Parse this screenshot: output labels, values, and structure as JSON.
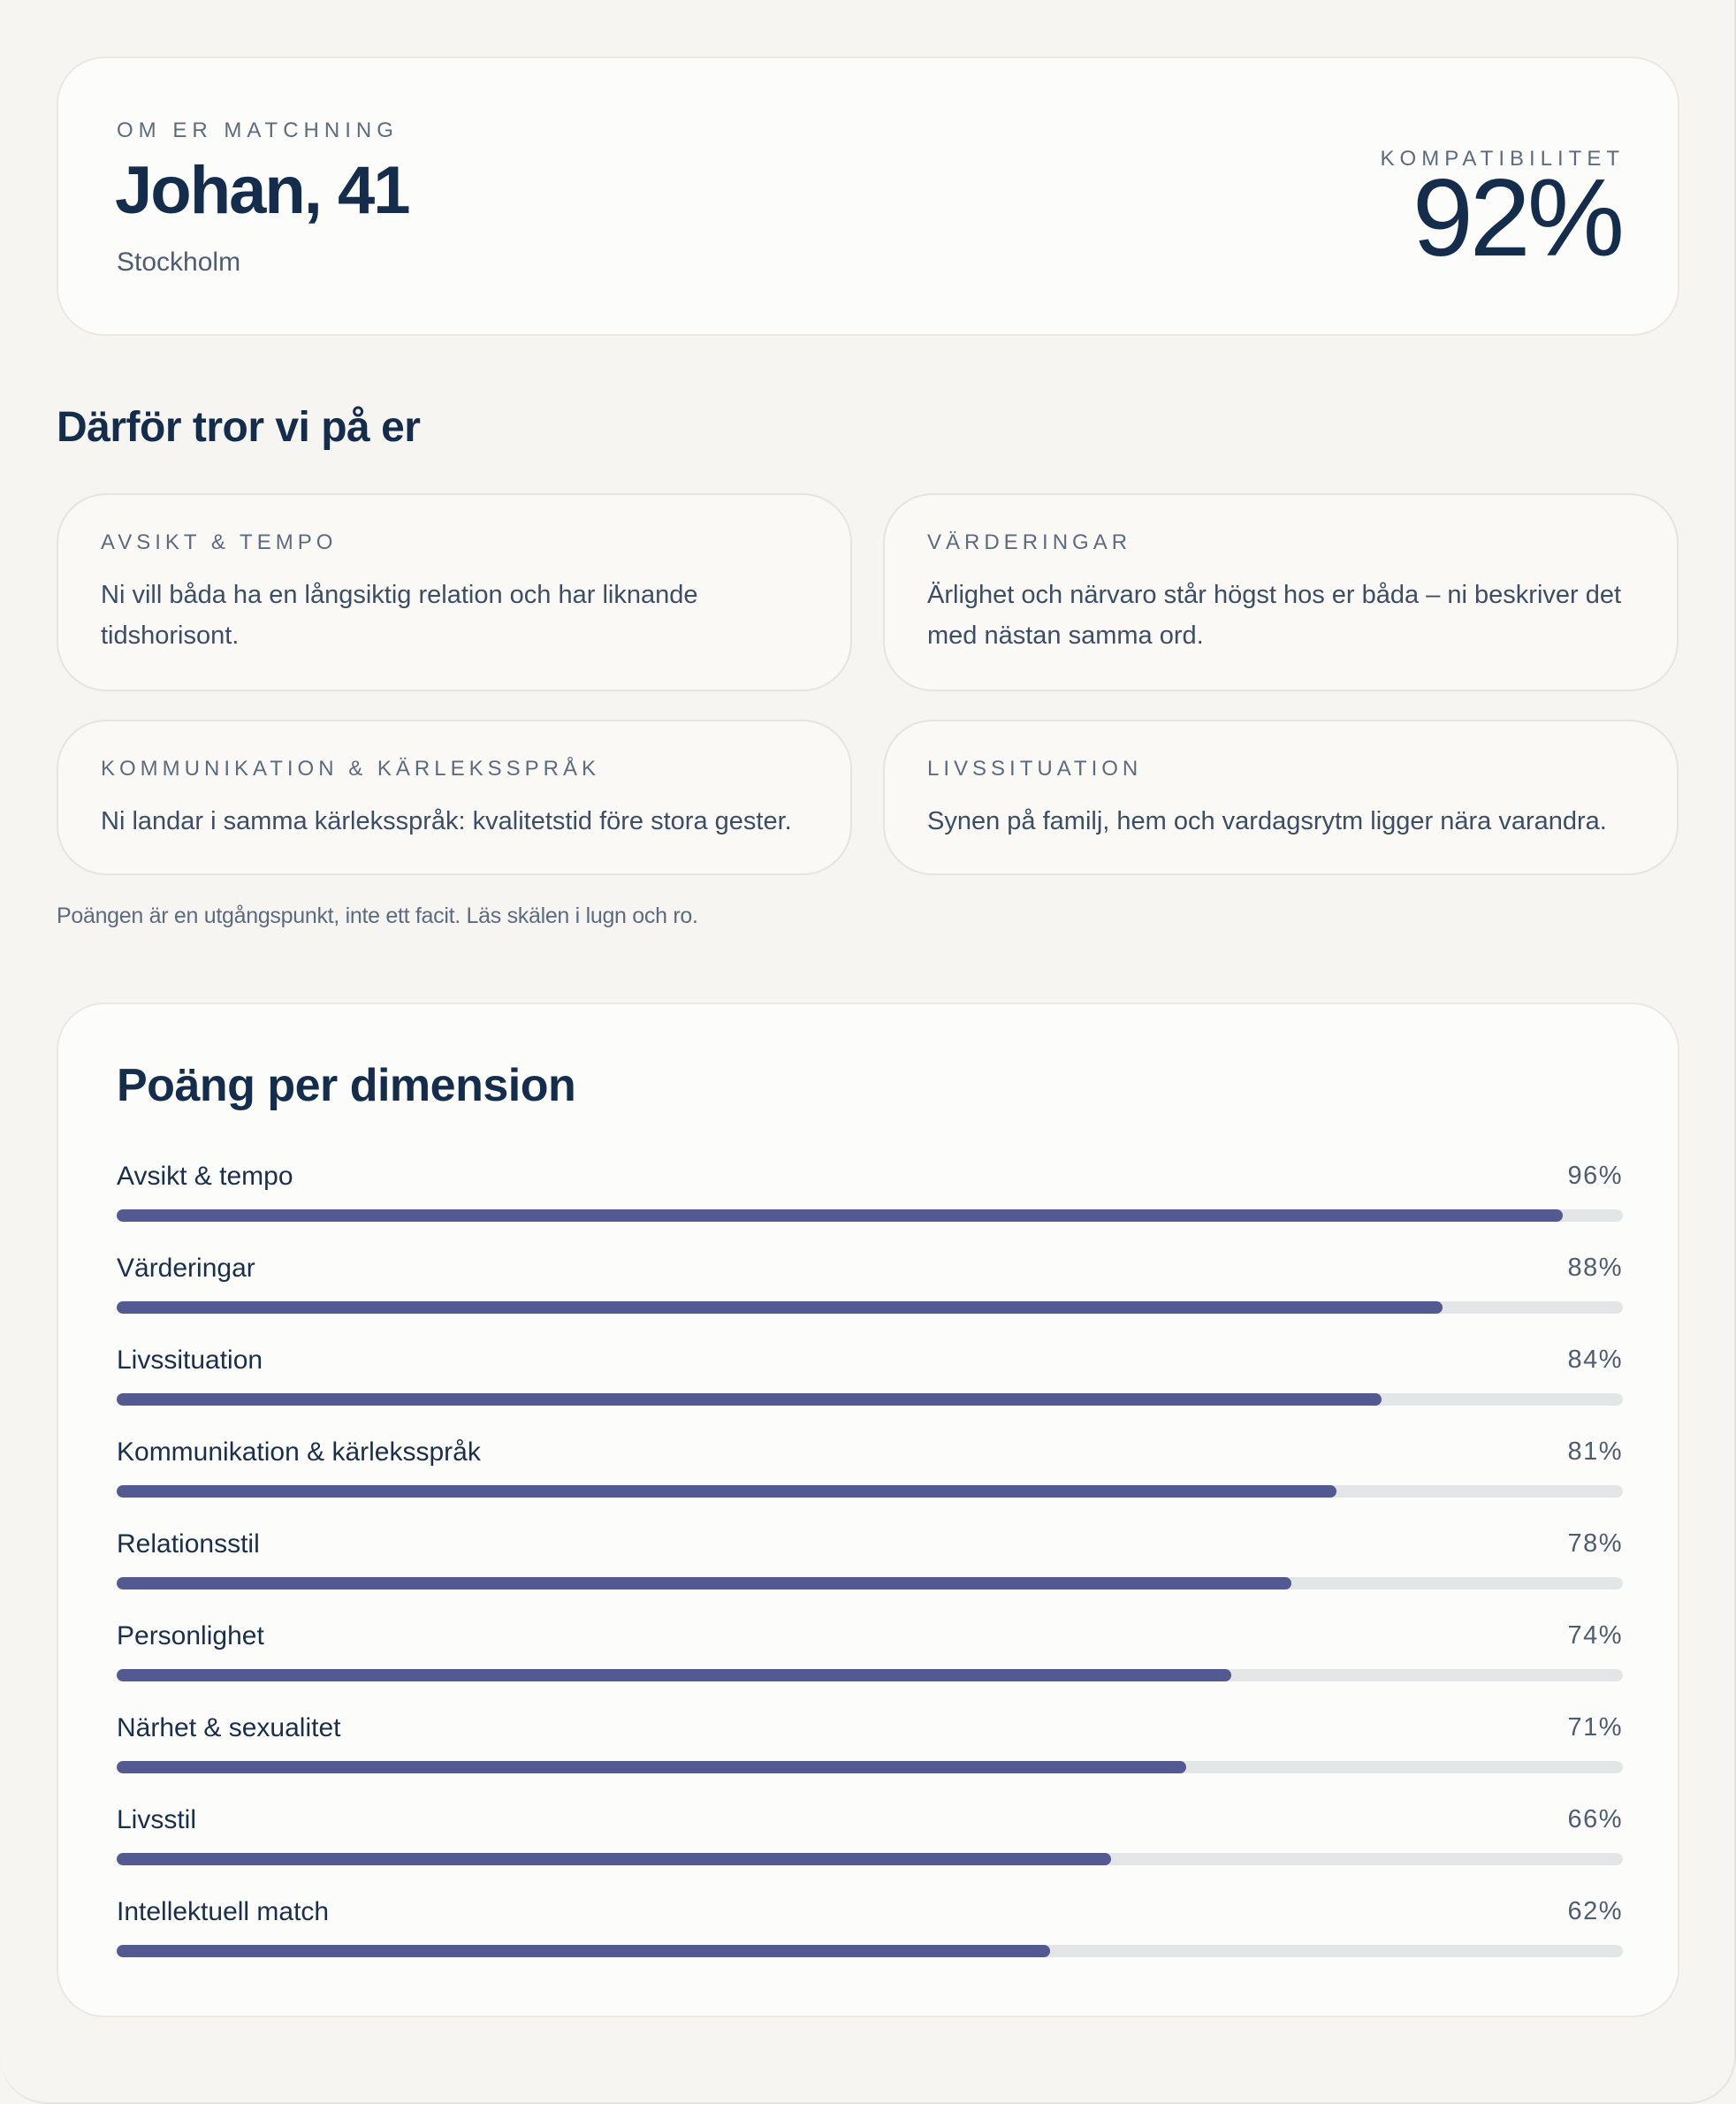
{
  "match": {
    "eyebrow": "OM ER MATCHNING",
    "name_age": "Johan, 41",
    "city": "Stockholm",
    "compat_label": "KOMPATIBILITET",
    "compat_value": "92%"
  },
  "reasons": {
    "title": "Därför tror vi på er",
    "items": [
      {
        "label": "AVSIKT & TEMPO",
        "text": "Ni vill båda ha en långsiktig relation och har liknande tidshorisont."
      },
      {
        "label": "VÄRDERINGAR",
        "text": "Ärlighet och närvaro står högst hos er båda – ni beskriver det med nästan samma ord."
      },
      {
        "label": "KOMMUNIKATION & KÄRLEKSSPRÅK",
        "text": "Ni landar i samma kärleksspråk: kvalitetstid före stora gester."
      },
      {
        "label": "LIVSSITUATION",
        "text": "Synen på familj, hem och vardagsrytm ligger nära varandra."
      }
    ],
    "disclaimer": "Poängen är en utgångspunkt, inte ett facit. Läs skälen i lugn och ro."
  },
  "scores": {
    "title": "Poäng per dimension",
    "items": [
      {
        "label": "Avsikt & tempo",
        "value": "96%",
        "fraction": 0.96
      },
      {
        "label": "Värderingar",
        "value": "88%",
        "fraction": 0.88
      },
      {
        "label": "Livssituation",
        "value": "84%",
        "fraction": 0.84
      },
      {
        "label": "Kommunikation & kärleksspråk",
        "value": "81%",
        "fraction": 0.81
      },
      {
        "label": "Relationsstil",
        "value": "78%",
        "fraction": 0.78
      },
      {
        "label": "Personlighet",
        "value": "74%",
        "fraction": 0.74
      },
      {
        "label": "Närhet & sexualitet",
        "value": "71%",
        "fraction": 0.71
      },
      {
        "label": "Livsstil",
        "value": "66%",
        "fraction": 0.66
      },
      {
        "label": "Intellektuell match",
        "value": "62%",
        "fraction": 0.62
      }
    ]
  },
  "colors": {
    "background": "#f6f5f1",
    "card": "#fcfcfa",
    "text_primary": "#142d4c",
    "text_muted": "#5c6b80",
    "bar_fill": "#525a8f",
    "bar_track": "#e4e5e7"
  }
}
